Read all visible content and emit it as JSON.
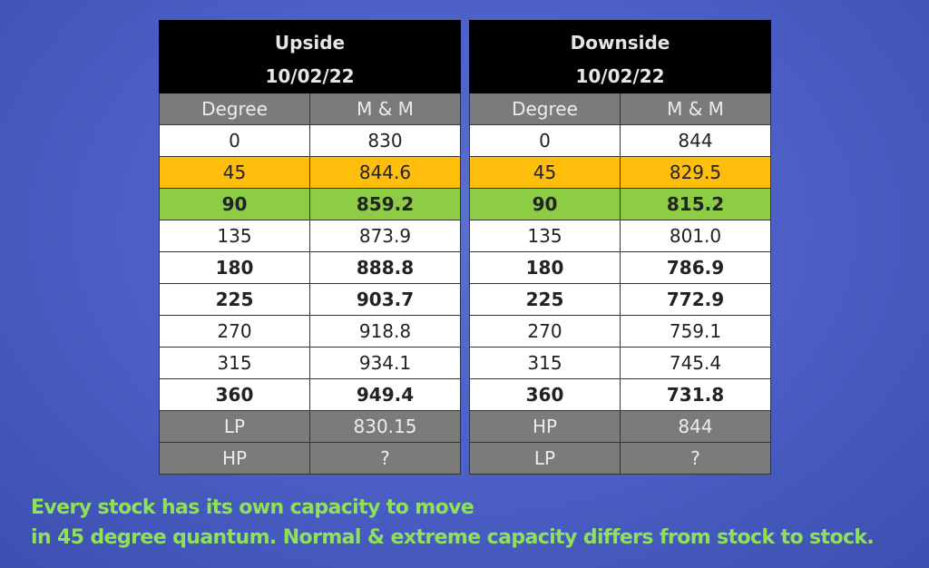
{
  "tables": [
    {
      "title": "Upside",
      "date": "10/02/22",
      "headers": [
        "Degree",
        "M & M"
      ],
      "rows": [
        [
          "0",
          "830"
        ],
        [
          "45",
          "844.6"
        ],
        [
          "90",
          "859.2"
        ],
        [
          "135",
          "873.9"
        ],
        [
          "180",
          "888.8"
        ],
        [
          "225",
          "903.7"
        ],
        [
          "270",
          "918.8"
        ],
        [
          "315",
          "934.1"
        ],
        [
          "360",
          "949.4"
        ]
      ],
      "footer": [
        [
          "LP",
          "830.15"
        ],
        [
          "HP",
          "?"
        ]
      ]
    },
    {
      "title": "Downside",
      "date": "10/02/22",
      "headers": [
        "Degree",
        "M & M"
      ],
      "rows": [
        [
          "0",
          "844"
        ],
        [
          "45",
          "829.5"
        ],
        [
          "90",
          "815.2"
        ],
        [
          "135",
          "801.0"
        ],
        [
          "180",
          "786.9"
        ],
        [
          "225",
          "772.9"
        ],
        [
          "270",
          "759.1"
        ],
        [
          "315",
          "745.4"
        ],
        [
          "360",
          "731.8"
        ]
      ],
      "footer": [
        [
          "HP",
          "844"
        ],
        [
          "LP",
          "?"
        ]
      ]
    }
  ],
  "highlight_colors": {
    "orange": "#ffbe0b",
    "green": "#8ccd45",
    "header": "#7b7b7b"
  },
  "caption": [
    "Every stock has its own capacity to move",
    "in 45 degree quantum. Normal & extreme capacity differs from stock to stock."
  ]
}
